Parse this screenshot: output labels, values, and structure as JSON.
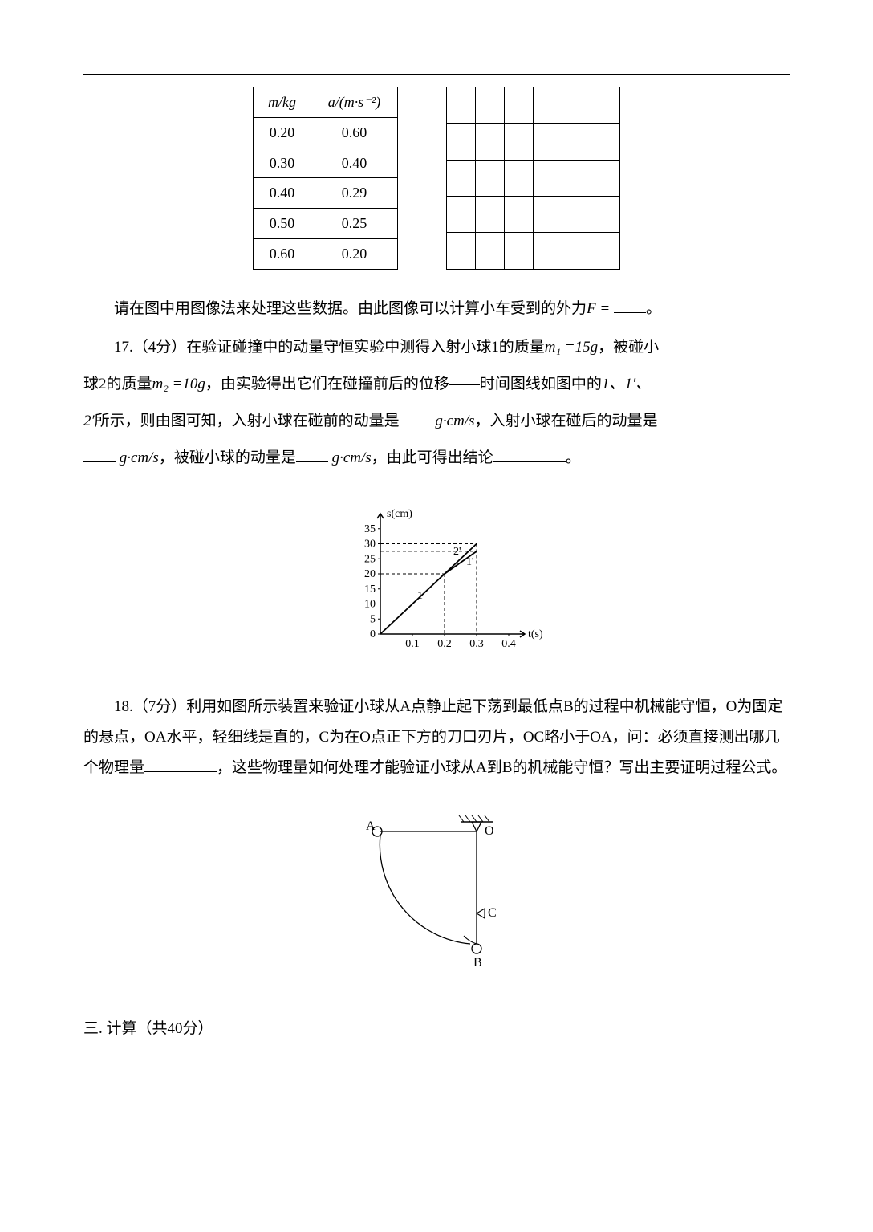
{
  "table": {
    "header_m": "m/kg",
    "header_a": "a/(m·s⁻²)",
    "rows": [
      {
        "m": "0.20",
        "a": "0.60"
      },
      {
        "m": "0.30",
        "a": "0.40"
      },
      {
        "m": "0.40",
        "a": "0.29"
      },
      {
        "m": "0.50",
        "a": "0.25"
      },
      {
        "m": "0.60",
        "a": "0.20"
      }
    ],
    "blank_rows": 5,
    "blank_cols": 6
  },
  "q16_tail": {
    "pre_blank": "请在图中用图像法来处理这些数据。由此图像可以计算小车受到的外力",
    "sym": "F = ",
    "post": "。"
  },
  "q17": {
    "lead": "17.（4分）在验证碰撞中的动量守恒实验中测得入射小球1的质量",
    "m1": "m₁ =15g",
    "mid1": "，被碰小",
    "line2_pre": "球2的质量",
    "m2": "m₂ =10g",
    "line2_mid": "，由实验得出它们在碰撞前后的位移——时间图线如图中的",
    "labels1": "1、1′、",
    "line3_pre": "2′",
    "line3_mid": "所示，则由图可知，入射小球在碰前的动量是",
    "unit": "g·cm/s",
    "line3_post": "，入射小球在碰后的动量是",
    "line4_mid": "，被碰小球的动量是",
    "line4_post": "，由此可得出结论",
    "end": "。"
  },
  "graph": {
    "y_label": "s(cm)",
    "x_label": "t(s)",
    "y_ticks": [
      "0",
      "5",
      "10",
      "15",
      "20",
      "25",
      "30",
      "35"
    ],
    "x_ticks": [
      "0.1",
      "0.2",
      "0.3",
      "0.4"
    ],
    "curve1_label": "1",
    "curve1p_label": "1'",
    "curve2p_label": "2'",
    "curve1_end_y": 20,
    "curve1_end_x": 0.2,
    "curve1p_end_y": 27.5,
    "curve1p_end_x": 0.3,
    "curve2p_end_y": 30,
    "curve2p_end_x": 0.3,
    "axis_color": "#000000",
    "dash_color": "#000000"
  },
  "q18": {
    "lead": "18.（7分）利用如图所示装置来验证小球从A点静止起下荡到最低点B的过程中机械能守恒，O为固定的悬点，OA水平，轻细线是直的，C为在O点正下方的刀口刃片，OC略小于OA，问：必须直接测出哪几个物理量",
    "mid": "，这些物理量如何处理才能验证小球从A到B的机械能守恒？写出主要证明过程公式。"
  },
  "pendulum": {
    "A": "A",
    "O": "O",
    "C": "C",
    "B": "B"
  },
  "section3": "三. 计算（共40分）"
}
